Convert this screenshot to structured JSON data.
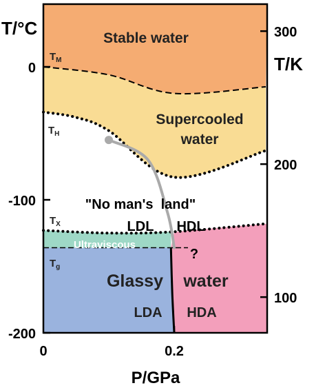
{
  "axes": {
    "left_title": "T/°C",
    "right_title": "T/K",
    "bottom_title": "P/GPa",
    "left_ticks": [
      {
        "value": 0,
        "label": "0"
      },
      {
        "value": -100,
        "label": "-100"
      },
      {
        "value": -200,
        "label": "-200"
      }
    ],
    "right_ticks": [
      {
        "value": 300,
        "label": "300"
      },
      {
        "value": 200,
        "label": "200"
      },
      {
        "value": 100,
        "label": "100"
      }
    ],
    "bottom_ticks": [
      {
        "value": 0,
        "label": "0"
      },
      {
        "value": 0.2,
        "label": "0.2"
      }
    ],
    "x_range_gpa": [
      0,
      0.34
    ],
    "y_range_celsius": [
      -200,
      45
    ]
  },
  "colors": {
    "stable": "#f5ac72",
    "supercooled": "#f9dc94",
    "nomansland": "#ffffff",
    "ultraviscous": "#9ed8c6",
    "glassy_low": "#9ab3de",
    "glassy_high": "#f39fbb",
    "line": "#000000",
    "widom": "#aaaaaa"
  },
  "regions": {
    "stable": "Stable water",
    "supercooled_line1": "Supercooled",
    "supercooled_line2": "water",
    "nomansland": "\"No man's  land\"",
    "ldl": "LDL",
    "hdl": "HDL",
    "ultraviscous": "Ultraviscous",
    "question": "?",
    "glassy": "Glassy",
    "water": "water",
    "lda": "LDA",
    "hda": "HDA"
  },
  "temperature_lines": {
    "tm": {
      "main": "T",
      "sub": "M"
    },
    "th": {
      "main": "T",
      "sub": "H"
    },
    "tx": {
      "main": "T",
      "sub": "X"
    },
    "tg": {
      "main": "T",
      "sub": "g"
    }
  },
  "boundaries": {
    "tm_curve": [
      [
        0,
        0
      ],
      [
        0.1,
        -6
      ],
      [
        0.2,
        -20
      ],
      [
        0.34,
        -15
      ]
    ],
    "th_curve": [
      [
        0,
        -34
      ],
      [
        0.05,
        -38
      ],
      [
        0.1,
        -48
      ],
      [
        0.2,
        -83
      ],
      [
        0.34,
        -63
      ]
    ],
    "tx_curve": [
      [
        0,
        -123
      ],
      [
        0.1,
        -125
      ],
      [
        0.2,
        -124
      ],
      [
        0.34,
        -118
      ]
    ],
    "tg_line": [
      [
        0,
        -136
      ],
      [
        0.2,
        -136
      ]
    ],
    "glass_boundary": [
      [
        0.195,
        -136
      ],
      [
        0.197,
        -170
      ],
      [
        0.2,
        -200
      ]
    ],
    "widom_line": [
      [
        0.1,
        -55
      ],
      [
        0.16,
        -70
      ],
      [
        0.19,
        -110
      ],
      [
        0.2,
        -136
      ]
    ],
    "critical_point": [
      0.1,
      -55
    ]
  }
}
